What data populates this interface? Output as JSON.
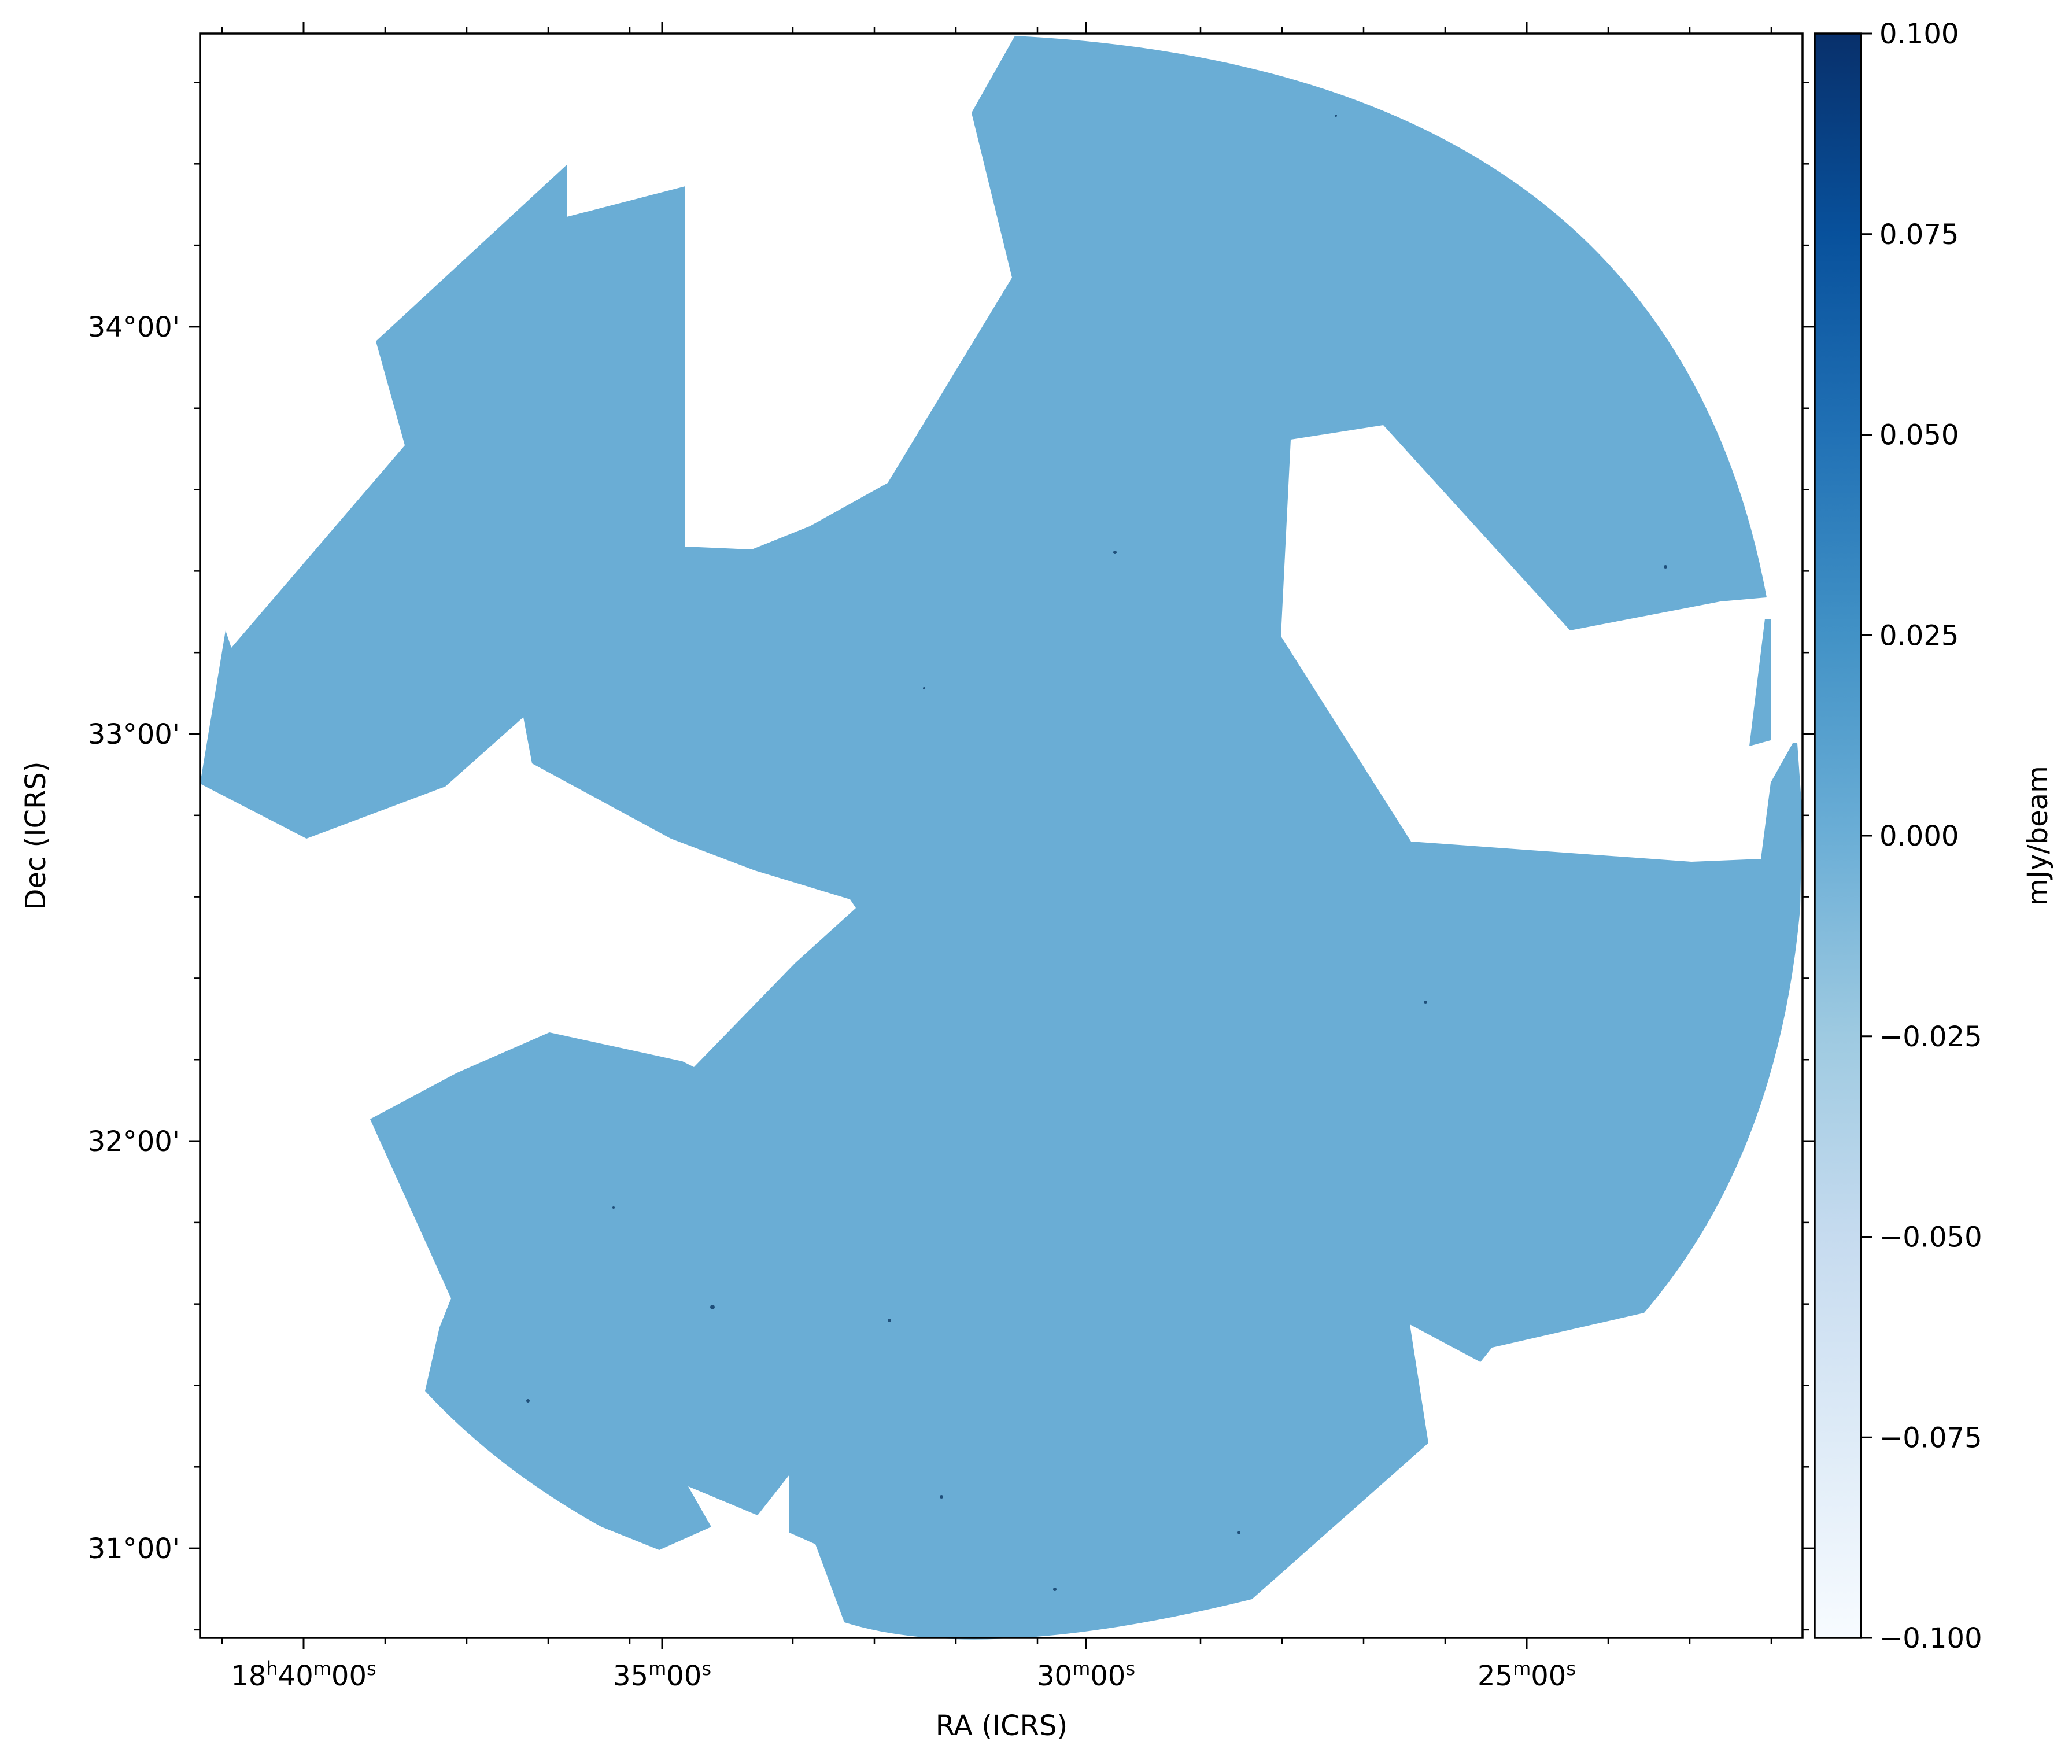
{
  "chart_data": {
    "type": "heatmap",
    "subtype": "sky-map",
    "title": "",
    "xlabel": "RA (ICRS)",
    "ylabel": "Dec (ICRS)",
    "x_axis": {
      "units": "right ascension (hms)",
      "direction": "increasing to the left",
      "major_ticks": [
        {
          "value": "18h40m00s",
          "parts": [
            {
              "t": "18"
            },
            {
              "t": "h",
              "sup": true
            },
            {
              "t": "40"
            },
            {
              "t": "m",
              "sup": true
            },
            {
              "t": "00"
            },
            {
              "t": "s",
              "sup": true
            }
          ]
        },
        {
          "value": "18h35m00s",
          "parts": [
            {
              "t": "35"
            },
            {
              "t": "m",
              "sup": true
            },
            {
              "t": "00"
            },
            {
              "t": "s",
              "sup": true
            }
          ]
        },
        {
          "value": "18h30m00s",
          "parts": [
            {
              "t": "30"
            },
            {
              "t": "m",
              "sup": true
            },
            {
              "t": "00"
            },
            {
              "t": "s",
              "sup": true
            }
          ]
        },
        {
          "value": "18h25m00s",
          "parts": [
            {
              "t": "25"
            },
            {
              "t": "m",
              "sup": true
            },
            {
              "t": "00"
            },
            {
              "t": "s",
              "sup": true
            }
          ]
        }
      ]
    },
    "y_axis": {
      "units": "declination (deg)",
      "range": [
        30.78,
        34.72
      ],
      "major_ticks": [
        {
          "value": 31,
          "label": "31°00'"
        },
        {
          "value": 32,
          "label": "32°00'"
        },
        {
          "value": 33,
          "label": "33°00'"
        },
        {
          "value": 34,
          "label": "34°00'"
        }
      ]
    },
    "image": {
      "description": "single-value mosaic coverage",
      "pixel_value": 0.0,
      "fill_color": "#6aadd5",
      "blank_color": "#ffffff"
    },
    "colorbar": {
      "label": "mJy/beam",
      "colormap": "Blues",
      "vmin": -0.1,
      "vmax": 0.1,
      "ticks": [
        {
          "value": 0.1,
          "label": "0.100"
        },
        {
          "value": 0.075,
          "label": "0.075"
        },
        {
          "value": 0.05,
          "label": "0.050"
        },
        {
          "value": 0.025,
          "label": "0.025"
        },
        {
          "value": 0.0,
          "label": "0.000"
        },
        {
          "value": -0.025,
          "label": "−0.025"
        },
        {
          "value": -0.05,
          "label": "−0.050"
        },
        {
          "value": -0.075,
          "label": "−0.075"
        },
        {
          "value": -0.1,
          "label": "−0.100"
        }
      ],
      "color_stops": [
        "#f7fbff",
        "#deebf7",
        "#c6dbef",
        "#9ecae1",
        "#6baed6",
        "#4292c6",
        "#2171b5",
        "#08519c",
        "#08306b"
      ]
    },
    "grid": false,
    "legend": "none"
  }
}
